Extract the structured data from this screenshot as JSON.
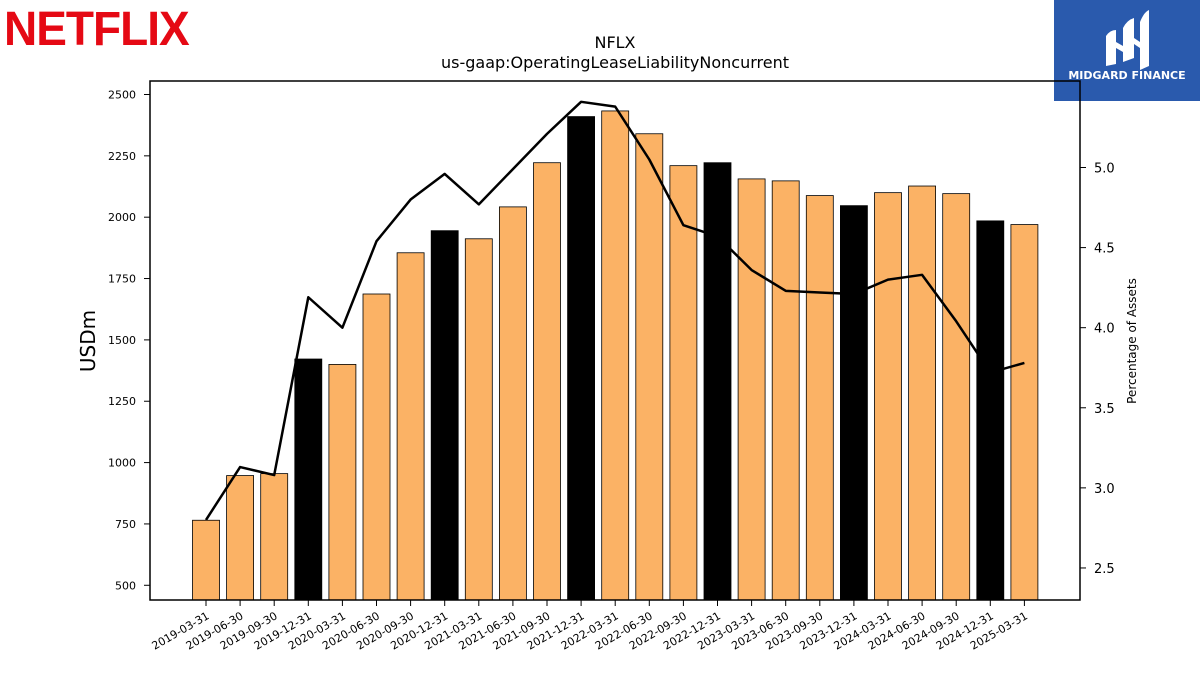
{
  "brand": {
    "company_logo_text": "NETFLIX",
    "company_logo_color": "#e50914",
    "publisher_name": "MIDGARD FINANCE",
    "publisher_bg_color": "#2a5aad"
  },
  "chart_data": {
    "type": "bar",
    "title": "NFLX",
    "subtitle": "us-gaap:OperatingLeaseLiabilityNoncurrent",
    "ylabel": "USDm",
    "y2label": "Percentage of Assets",
    "ylim": [
      440,
      2555
    ],
    "y2lim": [
      2.3,
      5.54
    ],
    "yticks": [
      500,
      750,
      1000,
      1250,
      1500,
      1750,
      2000,
      2250,
      2500
    ],
    "y2ticks": [
      "2.5",
      "3.0",
      "3.5",
      "4.0",
      "4.5",
      "5.0"
    ],
    "categories": [
      "2019-03-31",
      "2019-06-30",
      "2019-09-30",
      "2019-12-31",
      "2020-03-31",
      "2020-06-30",
      "2020-09-30",
      "2020-12-31",
      "2021-03-31",
      "2021-06-30",
      "2021-09-30",
      "2021-12-31",
      "2022-03-31",
      "2022-06-30",
      "2022-09-30",
      "2022-12-31",
      "2023-03-31",
      "2023-06-30",
      "2023-09-30",
      "2023-12-31",
      "2024-03-31",
      "2024-06-30",
      "2024-09-30",
      "2024-12-31",
      "2025-03-31"
    ],
    "series": [
      {
        "axis": "left",
        "kind": "bar",
        "values": [
          765,
          947,
          955,
          1422,
          1400,
          1687,
          1855,
          1945,
          1912,
          2042,
          2222,
          2410,
          2433,
          2340,
          2210,
          2222,
          2156,
          2148,
          2088,
          2047,
          2100,
          2127,
          2096,
          1985,
          1970
        ],
        "highlight": [
          false,
          false,
          false,
          true,
          false,
          false,
          false,
          true,
          false,
          false,
          false,
          true,
          false,
          false,
          false,
          true,
          false,
          false,
          false,
          true,
          false,
          false,
          false,
          true,
          false
        ]
      },
      {
        "axis": "right",
        "kind": "line",
        "values": [
          2.8,
          3.13,
          3.08,
          4.19,
          4.0,
          4.54,
          4.8,
          4.96,
          4.77,
          4.99,
          5.21,
          5.41,
          5.38,
          5.05,
          4.64,
          4.57,
          4.36,
          4.23,
          4.22,
          4.21,
          4.3,
          4.33,
          4.04,
          3.72,
          3.78
        ]
      }
    ],
    "colors": {
      "bar": "#fbb265",
      "bar_highlight": "#000000",
      "line": "#000000"
    },
    "grid": false,
    "legend": "none"
  }
}
